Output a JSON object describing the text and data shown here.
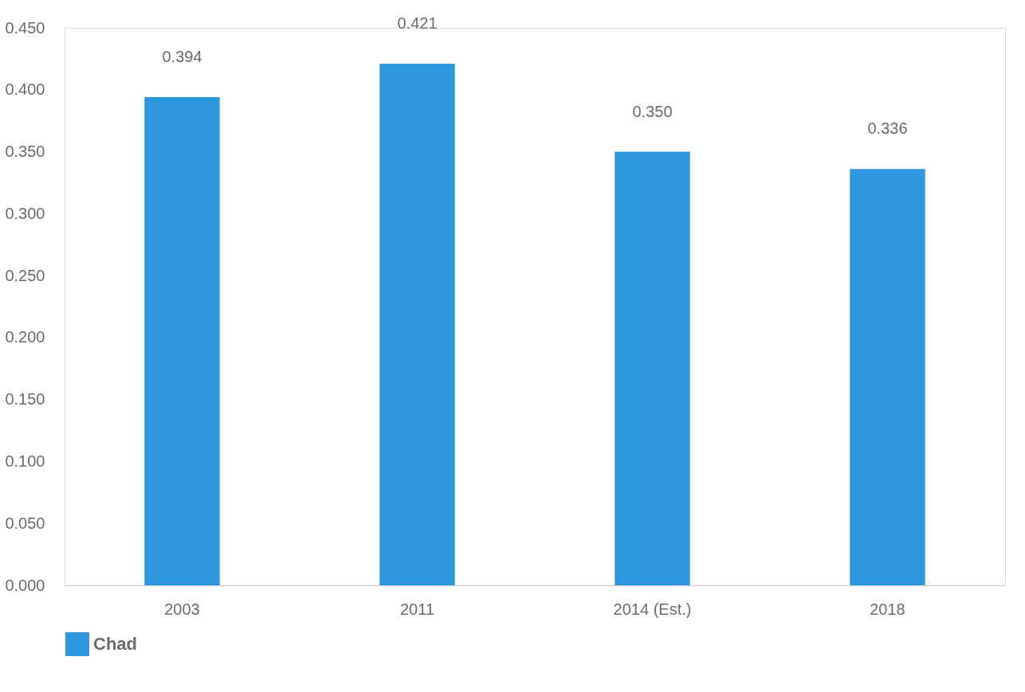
{
  "chart_data": {
    "type": "bar",
    "categories": [
      "2003",
      "2011",
      "2014 (Est.)",
      "2018"
    ],
    "series": [
      {
        "name": "Chad",
        "color": "#2e96dc",
        "values": [
          0.394,
          0.421,
          0.35,
          0.336
        ]
      }
    ],
    "value_labels": [
      "0.394",
      "0.421",
      "0.350",
      "0.336"
    ],
    "ylim": [
      0,
      0.45
    ],
    "yticks": [
      {
        "value": 0,
        "label": "0.000"
      },
      {
        "value": 0.05,
        "label": "0.050"
      },
      {
        "value": 0.1,
        "label": "0.100"
      },
      {
        "value": 0.15,
        "label": "0.150"
      },
      {
        "value": 0.2,
        "label": "0.200"
      },
      {
        "value": 0.25,
        "label": "0.250"
      },
      {
        "value": 0.3,
        "label": "0.300"
      },
      {
        "value": 0.35,
        "label": "0.350"
      },
      {
        "value": 0.4,
        "label": "0.400"
      },
      {
        "value": 0.45,
        "label": "0.450"
      }
    ],
    "grid": false,
    "legend": "bottom"
  }
}
